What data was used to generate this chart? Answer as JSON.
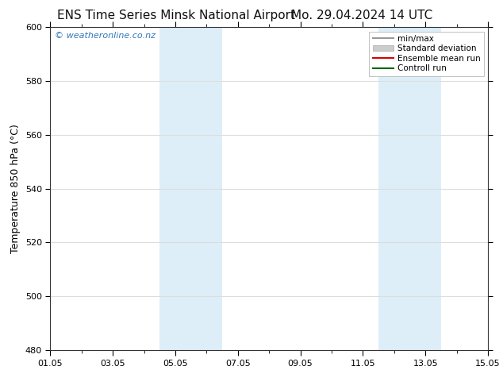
{
  "title_left": "ENS Time Series Minsk National Airport",
  "title_right": "Mo. 29.04.2024 14 UTC",
  "ylabel": "Temperature 850 hPa (°C)",
  "xlim_num": [
    0,
    14
  ],
  "ylim": [
    480,
    600
  ],
  "yticks": [
    480,
    500,
    520,
    540,
    560,
    580,
    600
  ],
  "xtick_positions": [
    0,
    2,
    4,
    6,
    8,
    10,
    12,
    14
  ],
  "xtick_labels": [
    "01.05",
    "03.05",
    "05.05",
    "07.05",
    "09.05",
    "11.05",
    "13.05",
    "15.05"
  ],
  "background_color": "#ffffff",
  "plot_bg_color": "#ffffff",
  "shaded_regions": [
    {
      "xmin": 3.5,
      "xmax": 4.5,
      "color": "#ddeef8"
    },
    {
      "xmin": 4.5,
      "xmax": 5.5,
      "color": "#ddeef8"
    },
    {
      "xmin": 10.5,
      "xmax": 11.5,
      "color": "#ddeef8"
    },
    {
      "xmin": 11.5,
      "xmax": 12.5,
      "color": "#ddeef8"
    }
  ],
  "watermark_text": "© weatheronline.co.nz",
  "watermark_color": "#3377bb",
  "legend_entries": [
    {
      "label": "min/max",
      "color": "#999999",
      "lw": 1.5,
      "style": "solid"
    },
    {
      "label": "Standard deviation",
      "color": "#cccccc",
      "lw": 6,
      "style": "solid"
    },
    {
      "label": "Ensemble mean run",
      "color": "#dd0000",
      "lw": 1.5,
      "style": "solid"
    },
    {
      "label": "Controll run",
      "color": "#006600",
      "lw": 1.5,
      "style": "solid"
    }
  ],
  "title_fontsize": 11,
  "tick_fontsize": 8,
  "ylabel_fontsize": 9,
  "watermark_fontsize": 8,
  "legend_fontsize": 7.5,
  "grid_color": "#dddddd",
  "grid_lw": 0.8,
  "spine_color": "#333333"
}
